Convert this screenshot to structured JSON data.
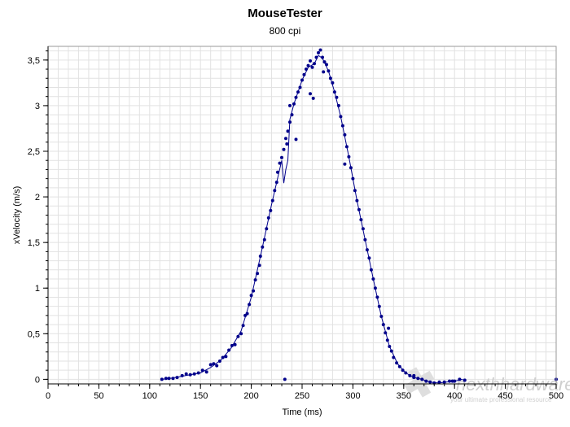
{
  "chart_data": {
    "type": "scatter",
    "title": "MouseTester",
    "subtitle": "800 cpi",
    "xlabel": "Time (ms)",
    "ylabel": "xVelocity (m/s)",
    "xlim": [
      0,
      500
    ],
    "ylim": [
      -0.05,
      3.65
    ],
    "x_ticks": [
      0,
      50,
      100,
      150,
      200,
      250,
      300,
      350,
      400,
      450,
      500
    ],
    "x_tick_labels": [
      "0",
      "50",
      "100",
      "150",
      "200",
      "250",
      "300",
      "350",
      "400",
      "450",
      "500"
    ],
    "y_ticks": [
      0,
      0.5,
      1,
      1.5,
      2,
      2.5,
      3,
      3.5
    ],
    "y_tick_labels": [
      "0",
      "0,5",
      "1",
      "1,5",
      "2",
      "2,5",
      "3",
      "3,5"
    ],
    "grid": true,
    "colors": {
      "series": "#00008b",
      "grid": "#e2e2e2",
      "axis": "#000000"
    },
    "series": [
      {
        "mode": "points",
        "points": [
          [
            112,
            0.0
          ],
          [
            116,
            0.01
          ],
          [
            119,
            0.01
          ],
          [
            123,
            0.01
          ],
          [
            127,
            0.02
          ],
          [
            132,
            0.04
          ],
          [
            136,
            0.06
          ],
          [
            140,
            0.05
          ],
          [
            144,
            0.06
          ],
          [
            148,
            0.07
          ],
          [
            152,
            0.1
          ],
          [
            156,
            0.08
          ],
          [
            160,
            0.16
          ],
          [
            163,
            0.17
          ],
          [
            166,
            0.15
          ],
          [
            169,
            0.2
          ],
          [
            172,
            0.24
          ],
          [
            175,
            0.25
          ],
          [
            178,
            0.32
          ],
          [
            181,
            0.37
          ],
          [
            184,
            0.38
          ],
          [
            187,
            0.47
          ],
          [
            190,
            0.5
          ],
          [
            192,
            0.59
          ],
          [
            194,
            0.7
          ],
          [
            196,
            0.72
          ],
          [
            198,
            0.82
          ],
          [
            200,
            0.92
          ],
          [
            202,
            0.97
          ],
          [
            204,
            1.09
          ],
          [
            206,
            1.16
          ],
          [
            208,
            1.25
          ],
          [
            209,
            1.35
          ],
          [
            211,
            1.45
          ],
          [
            213,
            1.53
          ],
          [
            215,
            1.65
          ],
          [
            217,
            1.77
          ],
          [
            219,
            1.85
          ],
          [
            221,
            1.96
          ],
          [
            223,
            2.07
          ],
          [
            225,
            2.16
          ],
          [
            226,
            2.27
          ],
          [
            228,
            2.37
          ],
          [
            230,
            2.43
          ],
          [
            232,
            2.52
          ],
          [
            234,
            2.64
          ],
          [
            236,
            2.72
          ],
          [
            238,
            2.82
          ],
          [
            240,
            2.9
          ],
          [
            242,
            3.02
          ],
          [
            244,
            3.09
          ],
          [
            246,
            3.15
          ],
          [
            248,
            3.2
          ],
          [
            250,
            3.28
          ],
          [
            252,
            3.34
          ],
          [
            254,
            3.4
          ],
          [
            256,
            3.44
          ],
          [
            258,
            3.49
          ],
          [
            260,
            3.42
          ],
          [
            262,
            3.46
          ],
          [
            264,
            3.53
          ],
          [
            266,
            3.58
          ],
          [
            268,
            3.61
          ],
          [
            270,
            3.53
          ],
          [
            272,
            3.48
          ],
          [
            274,
            3.45
          ],
          [
            276,
            3.38
          ],
          [
            278,
            3.3
          ],
          [
            280,
            3.25
          ],
          [
            282,
            3.15
          ],
          [
            284,
            3.09
          ],
          [
            286,
            3.0
          ],
          [
            288,
            2.88
          ],
          [
            290,
            2.78
          ],
          [
            292,
            2.68
          ],
          [
            294,
            2.55
          ],
          [
            296,
            2.44
          ],
          [
            298,
            2.32
          ],
          [
            300,
            2.2
          ],
          [
            302,
            2.07
          ],
          [
            304,
            1.96
          ],
          [
            306,
            1.86
          ],
          [
            308,
            1.75
          ],
          [
            310,
            1.65
          ],
          [
            312,
            1.53
          ],
          [
            314,
            1.42
          ],
          [
            316,
            1.33
          ],
          [
            318,
            1.2
          ],
          [
            320,
            1.1
          ],
          [
            322,
            1.0
          ],
          [
            324,
            0.9
          ],
          [
            326,
            0.8
          ],
          [
            328,
            0.69
          ],
          [
            330,
            0.6
          ],
          [
            332,
            0.51
          ],
          [
            334,
            0.43
          ],
          [
            336,
            0.36
          ],
          [
            338,
            0.31
          ],
          [
            340,
            0.24
          ],
          [
            343,
            0.18
          ],
          [
            346,
            0.14
          ],
          [
            349,
            0.1
          ],
          [
            352,
            0.07
          ],
          [
            356,
            0.04
          ],
          [
            360,
            0.02
          ],
          [
            364,
            0.01
          ],
          [
            368,
            0.0
          ],
          [
            372,
            -0.02
          ],
          [
            376,
            -0.03
          ],
          [
            380,
            -0.04
          ],
          [
            385,
            -0.03
          ],
          [
            390,
            -0.03
          ],
          [
            395,
            -0.02
          ],
          [
            400,
            -0.02
          ],
          [
            405,
            0.0
          ],
          [
            410,
            -0.01
          ],
          [
            233,
            0.0
          ],
          [
            235,
            2.58
          ],
          [
            238,
            3.0
          ],
          [
            244,
            2.63
          ],
          [
            258,
            3.13
          ],
          [
            261,
            3.08
          ],
          [
            271,
            3.37
          ],
          [
            292,
            2.36
          ],
          [
            335,
            0.56
          ],
          [
            360,
            0.04
          ],
          [
            398,
            -0.02
          ],
          [
            410,
            -0.01
          ],
          [
            500,
            0.0
          ]
        ]
      },
      {
        "mode": "line",
        "points": [
          [
            112,
            0.0
          ],
          [
            120,
            0.01
          ],
          [
            130,
            0.03
          ],
          [
            140,
            0.05
          ],
          [
            150,
            0.07
          ],
          [
            160,
            0.13
          ],
          [
            170,
            0.21
          ],
          [
            180,
            0.34
          ],
          [
            190,
            0.53
          ],
          [
            200,
            0.9
          ],
          [
            210,
            1.4
          ],
          [
            220,
            1.92
          ],
          [
            225,
            2.16
          ],
          [
            230,
            2.4
          ],
          [
            232,
            2.15
          ],
          [
            234,
            2.3
          ],
          [
            236,
            2.4
          ],
          [
            238,
            2.85
          ],
          [
            242,
            3.02
          ],
          [
            250,
            3.28
          ],
          [
            256,
            3.42
          ],
          [
            262,
            3.46
          ],
          [
            266,
            3.55
          ],
          [
            270,
            3.52
          ],
          [
            276,
            3.38
          ],
          [
            282,
            3.15
          ],
          [
            288,
            2.88
          ],
          [
            296,
            2.44
          ],
          [
            304,
            1.96
          ],
          [
            312,
            1.53
          ],
          [
            320,
            1.1
          ],
          [
            328,
            0.69
          ],
          [
            336,
            0.36
          ],
          [
            344,
            0.17
          ],
          [
            352,
            0.07
          ],
          [
            360,
            0.02
          ],
          [
            368,
            0.0
          ],
          [
            376,
            -0.03
          ],
          [
            384,
            -0.04
          ],
          [
            392,
            -0.03
          ],
          [
            400,
            -0.02
          ],
          [
            408,
            0.0
          ]
        ]
      }
    ]
  },
  "watermark": {
    "brand": "hardware",
    "prefix": "nexth",
    "tagline": "your ultimate professional resource"
  }
}
